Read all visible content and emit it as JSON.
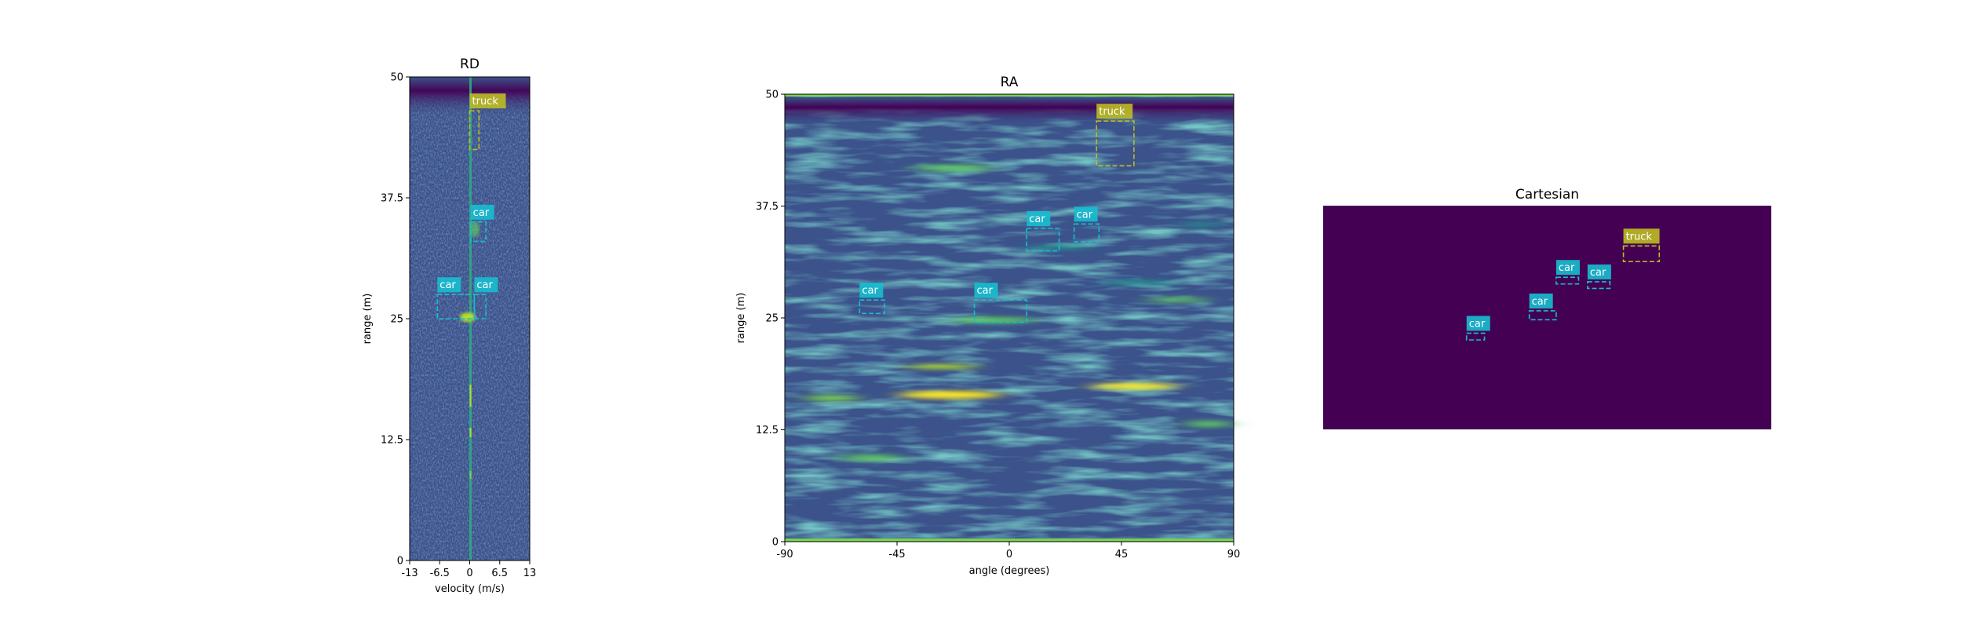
{
  "colors": {
    "car": "#17becf",
    "truck": "#bcbd22",
    "cmap_low": "#440154",
    "cmap_mid": "#3b528b",
    "cmap_teal": "#21918c",
    "cmap_green": "#5ec962",
    "cmap_high": "#fde725"
  },
  "chart_data": [
    {
      "type": "heatmap",
      "name": "rd",
      "title": "RD",
      "xlabel": "velocity (m/s)",
      "ylabel": "range (m)",
      "xlim": [
        -13,
        13
      ],
      "ylim": [
        0,
        50
      ],
      "xticks": [
        -13,
        -6.5,
        0,
        6.5,
        13
      ],
      "xtick_labels": [
        "-13",
        "-6.5",
        "0",
        "6.5",
        "13"
      ],
      "yticks": [
        0,
        12.5,
        25,
        37.5,
        50
      ],
      "ytick_labels": [
        "0",
        "12.5",
        "25",
        "37.5",
        "50"
      ],
      "boxes": [
        {
          "label": "truck",
          "x0": 0,
          "x1": 2,
          "y0": 42.5,
          "y1": 46.5
        },
        {
          "label": "car",
          "x0": 0.2,
          "x1": 3.5,
          "y0": 33,
          "y1": 35
        },
        {
          "label": "car",
          "x0": -7,
          "x1": 1,
          "y0": 25,
          "y1": 27.5
        },
        {
          "label": "car",
          "x0": 1,
          "x1": 3.5,
          "y0": 25,
          "y1": 27.5
        }
      ]
    },
    {
      "type": "heatmap",
      "name": "ra",
      "title": "RA",
      "xlabel": "angle (degrees)",
      "ylabel": "range (m)",
      "xlim": [
        -90,
        90
      ],
      "ylim": [
        0,
        50
      ],
      "xticks": [
        -90,
        -45,
        0,
        45,
        90
      ],
      "xtick_labels": [
        "-90",
        "-45",
        "0",
        "45",
        "90"
      ],
      "yticks": [
        0,
        12.5,
        25,
        37.5,
        50
      ],
      "ytick_labels": [
        "0",
        "12.5",
        "25",
        "37.5",
        "50"
      ],
      "boxes": [
        {
          "label": "truck",
          "x0": 35,
          "x1": 50,
          "y0": 42,
          "y1": 47
        },
        {
          "label": "car",
          "x0": 7,
          "x1": 20,
          "y0": 32.5,
          "y1": 35
        },
        {
          "label": "car",
          "x0": 26,
          "x1": 36,
          "y0": 33.5,
          "y1": 35.5
        },
        {
          "label": "car",
          "x0": -60,
          "x1": -50,
          "y0": 25.5,
          "y1": 27
        },
        {
          "label": "car",
          "x0": -14,
          "x1": 7,
          "y0": 24.5,
          "y1": 27
        }
      ]
    },
    {
      "type": "heatmap",
      "name": "cartesian",
      "title": "Cartesian",
      "xlim": [
        0,
        100
      ],
      "ylim": [
        0,
        50
      ],
      "boxes": [
        {
          "label": "truck",
          "x0": 67,
          "x1": 75,
          "y0": 37.5,
          "y1": 41
        },
        {
          "label": "car",
          "x0": 52,
          "x1": 57,
          "y0": 32.5,
          "y1": 34
        },
        {
          "label": "car",
          "x0": 59,
          "x1": 64,
          "y0": 31.5,
          "y1": 33
        },
        {
          "label": "car",
          "x0": 46,
          "x1": 52,
          "y0": 24.5,
          "y1": 26.5
        },
        {
          "label": "car",
          "x0": 32,
          "x1": 36,
          "y0": 20,
          "y1": 21.5
        }
      ]
    }
  ]
}
